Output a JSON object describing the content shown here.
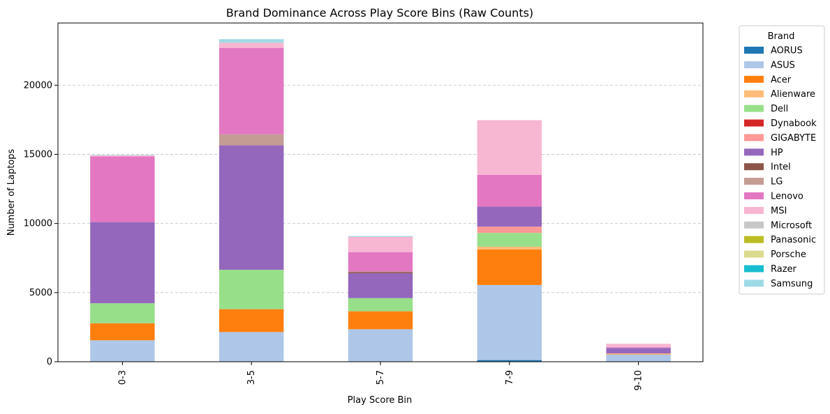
{
  "chart_data": {
    "type": "bar",
    "stacked": true,
    "title": "Brand Dominance Across Play Score Bins (Raw Counts)",
    "xlabel": "Play Score Bin",
    "ylabel": "Number of Laptops",
    "categories": [
      "0-3",
      "3-5",
      "5-7",
      "7-9",
      "9-10"
    ],
    "ylim": [
      0,
      24500
    ],
    "yticks": [
      0,
      5000,
      10000,
      15000,
      20000
    ],
    "ytick_labels": [
      "0",
      "5000",
      "10000",
      "15000",
      "20000"
    ],
    "grid": "y-dashed",
    "legend_title": "Brand",
    "legend_position": "outside-right",
    "series": [
      {
        "name": "AORUS",
        "color": "#1f77b4",
        "values": [
          0,
          0,
          0,
          120,
          0
        ]
      },
      {
        "name": "ASUS",
        "color": "#aec7e8",
        "values": [
          1550,
          2150,
          2350,
          5430,
          520
        ]
      },
      {
        "name": "Acer",
        "color": "#ff7f0e",
        "values": [
          1230,
          1650,
          1300,
          2570,
          30
        ]
      },
      {
        "name": "Alienware",
        "color": "#ffbb78",
        "values": [
          0,
          0,
          0,
          200,
          50
        ]
      },
      {
        "name": "Dell",
        "color": "#98df8a",
        "values": [
          1450,
          2850,
          950,
          1000,
          0
        ]
      },
      {
        "name": "Dynabook",
        "color": "#d62728",
        "values": [
          0,
          0,
          0,
          0,
          0
        ]
      },
      {
        "name": "GIGABYTE",
        "color": "#ff9896",
        "values": [
          0,
          0,
          0,
          450,
          0
        ]
      },
      {
        "name": "HP",
        "color": "#9467bd",
        "values": [
          5870,
          9000,
          1800,
          1450,
          400
        ]
      },
      {
        "name": "Intel",
        "color": "#8c564b",
        "values": [
          0,
          0,
          80,
          0,
          0
        ]
      },
      {
        "name": "LG",
        "color": "#c49c94",
        "values": [
          0,
          800,
          50,
          0,
          0
        ]
      },
      {
        "name": "Lenovo",
        "color": "#e377c2",
        "values": [
          4750,
          6250,
          1400,
          2300,
          50
        ]
      },
      {
        "name": "MSI",
        "color": "#f7b6d2",
        "values": [
          70,
          350,
          1100,
          3950,
          250
        ]
      },
      {
        "name": "Microsoft",
        "color": "#c7c7c7",
        "values": [
          0,
          50,
          0,
          0,
          0
        ]
      },
      {
        "name": "Panasonic",
        "color": "#bcbd22",
        "values": [
          0,
          0,
          0,
          0,
          0
        ]
      },
      {
        "name": "Porsche",
        "color": "#dbdb8d",
        "values": [
          0,
          0,
          0,
          0,
          0
        ]
      },
      {
        "name": "Razer",
        "color": "#17becf",
        "values": [
          0,
          0,
          0,
          0,
          0
        ]
      },
      {
        "name": "Samsung",
        "color": "#9edae5",
        "values": [
          30,
          230,
          60,
          0,
          0
        ]
      }
    ]
  }
}
